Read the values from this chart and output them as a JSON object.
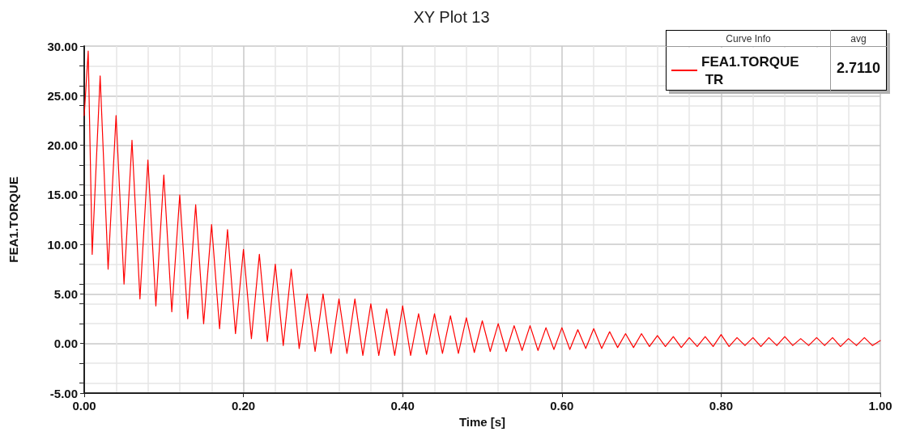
{
  "chart_data": {
    "type": "line",
    "title": "XY Plot 13",
    "xlabel": "Time [s]",
    "ylabel": "FEA1.TORQUE",
    "legend_title": "Curve Info",
    "legend": "top right",
    "annotations": [
      "avg",
      "2.7110"
    ],
    "xlim": [
      0,
      1
    ],
    "xticks": [
      {
        "value": 0,
        "label": "0.00"
      },
      {
        "value": 0.2,
        "label": "0.20"
      },
      {
        "value": 0.4,
        "label": "0.40"
      },
      {
        "value": 0.6,
        "label": "0.60"
      },
      {
        "value": 0.8,
        "label": "0.80"
      },
      {
        "value": 1,
        "label": "1.00"
      }
    ],
    "ylim": [
      -5,
      30
    ],
    "yticks": [
      {
        "value": -5,
        "label": "-5.00"
      },
      {
        "value": 0,
        "label": "0.00"
      },
      {
        "value": 5,
        "label": "5.00"
      },
      {
        "value": 10,
        "label": "10.00"
      },
      {
        "value": 15,
        "label": "15.00"
      },
      {
        "value": 20,
        "label": "20.00"
      },
      {
        "value": 25,
        "label": "25.00"
      },
      {
        "value": 30,
        "label": "30.00"
      }
    ],
    "grid": true,
    "marker": "none",
    "line_style": "solid",
    "series": [
      {
        "name": "FEA1.TORQUE TR",
        "color": "#ff0000",
        "x": [
          0,
          0.005,
          0.01,
          0.02,
          0.03,
          0.04,
          0.05,
          0.06,
          0.07,
          0.08,
          0.09,
          0.1,
          0.11,
          0.12,
          0.13,
          0.14,
          0.15,
          0.16,
          0.17,
          0.18,
          0.19,
          0.2,
          0.21,
          0.22,
          0.23,
          0.24,
          0.25,
          0.26,
          0.27,
          0.28,
          0.29,
          0.3,
          0.31,
          0.32,
          0.33,
          0.34,
          0.35,
          0.36,
          0.37,
          0.38,
          0.39,
          0.4,
          0.41,
          0.42,
          0.43,
          0.44,
          0.45,
          0.46,
          0.47,
          0.48,
          0.49,
          0.5,
          0.51,
          0.52,
          0.53,
          0.54,
          0.55,
          0.56,
          0.57,
          0.58,
          0.59,
          0.6,
          0.61,
          0.62,
          0.63,
          0.64,
          0.65,
          0.66,
          0.67,
          0.68,
          0.69,
          0.7,
          0.71,
          0.72,
          0.73,
          0.74,
          0.75,
          0.76,
          0.77,
          0.78,
          0.79,
          0.8,
          0.81,
          0.82,
          0.83,
          0.84,
          0.85,
          0.86,
          0.87,
          0.88,
          0.89,
          0.9,
          0.91,
          0.92,
          0.93,
          0.94,
          0.95,
          0.96,
          0.97,
          0.98,
          0.99,
          1
        ],
        "values": [
          23,
          29.5,
          9,
          27,
          7.5,
          23,
          6,
          20.5,
          4.5,
          18.5,
          3.8,
          17,
          3.2,
          15,
          2.5,
          14,
          2,
          12,
          1.5,
          11.5,
          1,
          9.5,
          0.5,
          9,
          0.2,
          8,
          -0.2,
          7.5,
          -0.5,
          5,
          -0.8,
          5,
          -1,
          4.5,
          -1,
          4.5,
          -1.2,
          4,
          -1.2,
          3.5,
          -1.2,
          3.8,
          -1.2,
          3,
          -1.1,
          3,
          -1,
          2.8,
          -1,
          2.6,
          -0.9,
          2.3,
          -0.8,
          2,
          -0.8,
          1.8,
          -0.7,
          1.8,
          -0.7,
          1.6,
          -0.6,
          1.6,
          -0.6,
          1.4,
          -0.5,
          1.5,
          -0.5,
          1.2,
          -0.4,
          1,
          -0.4,
          1,
          -0.3,
          0.8,
          -0.3,
          0.7,
          -0.4,
          0.6,
          -0.3,
          0.7,
          -0.3,
          0.9,
          -0.3,
          0.6,
          -0.2,
          0.6,
          -0.3,
          0.6,
          -0.2,
          0.7,
          -0.2,
          0.5,
          -0.2,
          0.6,
          -0.2,
          0.6,
          -0.3,
          0.5,
          -0.2,
          0.6,
          -0.2,
          0.3
        ]
      }
    ]
  }
}
